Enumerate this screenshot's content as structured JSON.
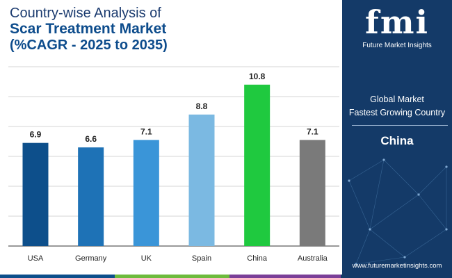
{
  "title": {
    "line1": "Country-wise Analysis of",
    "line2": "Scar Treatment Market",
    "line3": "(%CAGR - 2025 to 2035)"
  },
  "chart_data": {
    "type": "bar",
    "title": "Country-wise Analysis of Scar Treatment Market (%CAGR - 2025 to 2035)",
    "categories": [
      "USA",
      "Germany",
      "UK",
      "Spain",
      "China",
      "Australia"
    ],
    "values": [
      6.9,
      6.6,
      7.1,
      8.8,
      10.8,
      7.1
    ],
    "value_labels": [
      "6.9",
      "6.6",
      "7.1",
      "8.8",
      "10.8",
      "7.1"
    ],
    "colors": [
      "#0d4f8b",
      "#1e72b6",
      "#3a95d8",
      "#7bb9e2",
      "#1fc93f",
      "#7a7a7a"
    ],
    "xlabel": "",
    "ylabel": "",
    "ylim": [
      0,
      12
    ],
    "grid": true
  },
  "side_panel": {
    "brand": "fmi",
    "brand_sub": "Future Market Insights",
    "label_line1": "Global Market",
    "label_line2": "Fastest Growing Country",
    "country": "China",
    "url": "www.futuremarketinsights.com"
  },
  "colors": {
    "panel_bg": "#143a68",
    "title_dark": "#1b3b6f",
    "title_blue": "#0d4c8c",
    "bottom_bar": [
      "#0d4f8b",
      "#6dbb3c",
      "#7b3f98",
      "#143a68"
    ]
  }
}
